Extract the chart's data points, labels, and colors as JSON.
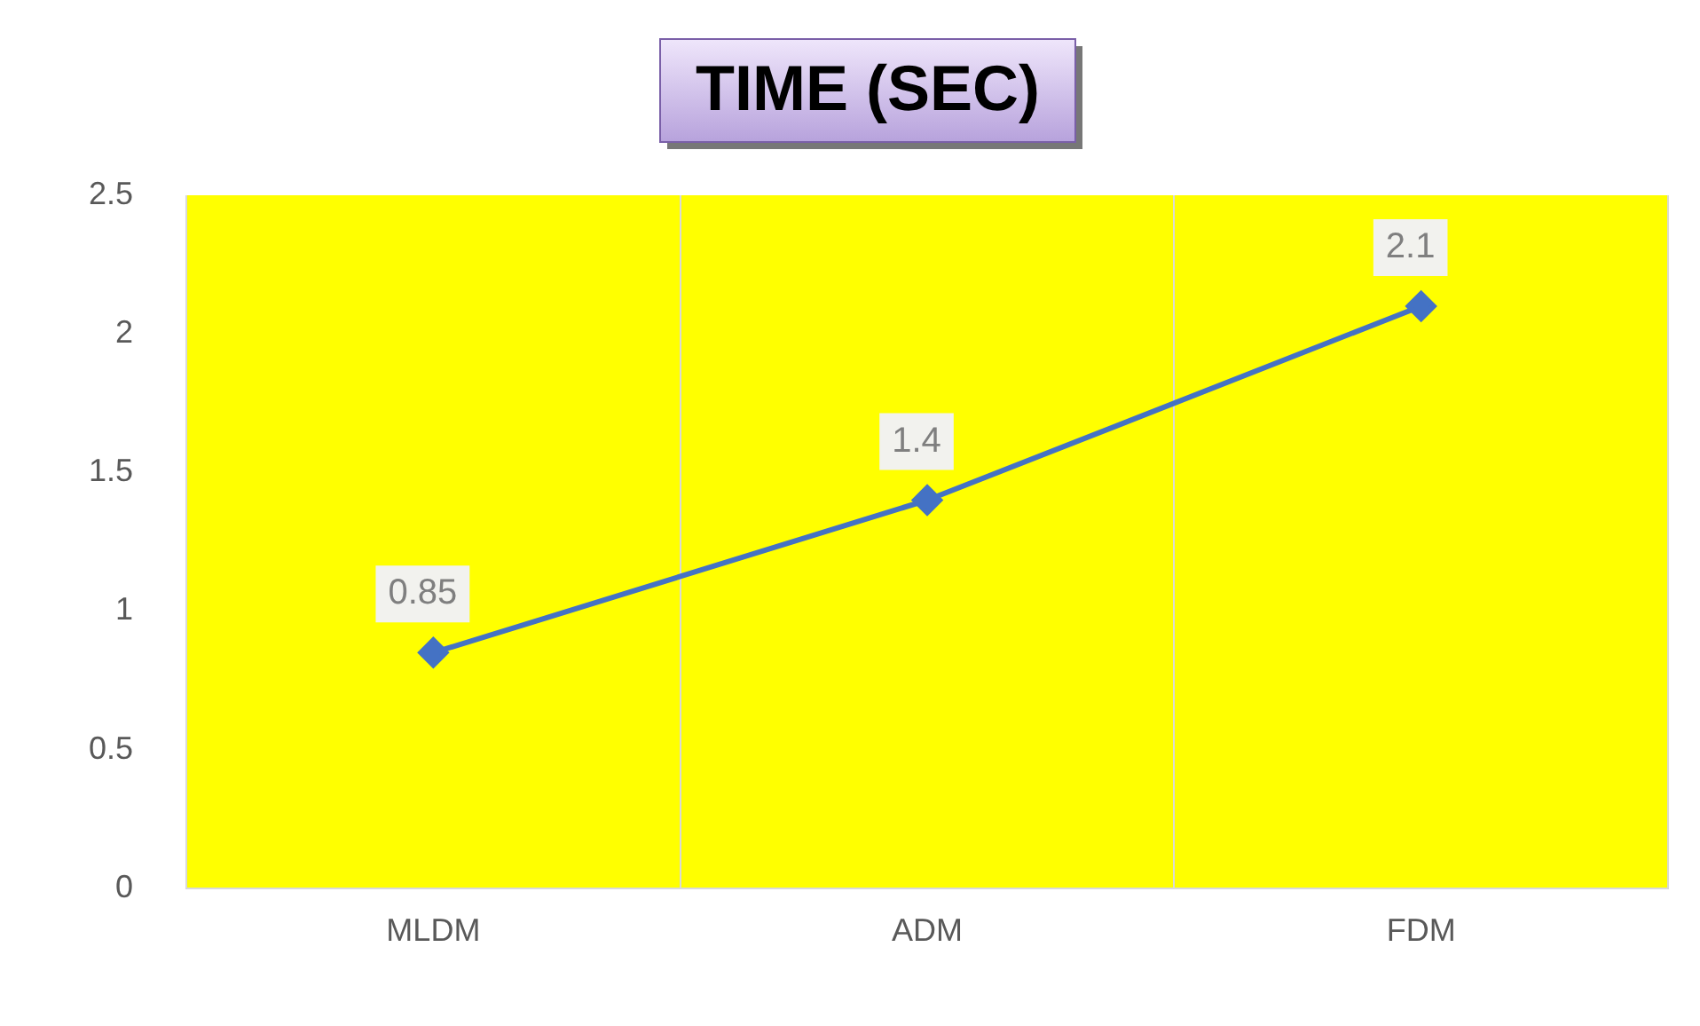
{
  "chart_data": {
    "type": "line",
    "title": "TIME (SEC)",
    "categories": [
      "MLDM",
      "ADM",
      "FDM"
    ],
    "series": [
      {
        "color": "#4472c4",
        "values": [
          0.85,
          1.4,
          2.1
        ]
      }
    ],
    "ylim": [
      0,
      2.5
    ],
    "yticks": [
      0,
      0.5,
      1,
      1.5,
      2,
      2.5
    ],
    "grid": "x",
    "legend": false,
    "marker": "diamond",
    "line_style": "solid",
    "data_labels": true
  }
}
